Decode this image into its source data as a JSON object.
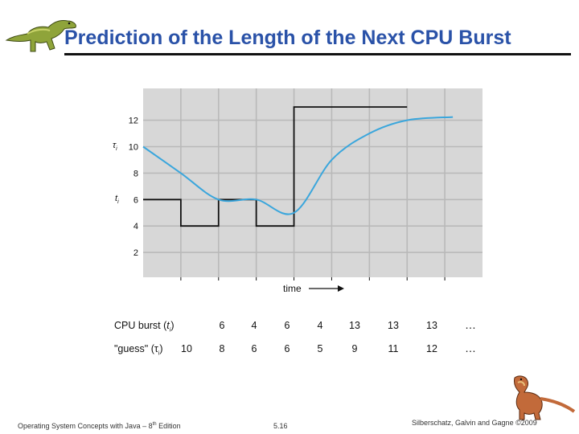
{
  "slide": {
    "title": "Prediction of the Length of the Next CPU Burst",
    "footer_left": "Operating System Concepts  with Java – 8",
    "footer_left_sup": "th",
    "footer_left_end": " Edition",
    "footer_center": "5.16",
    "footer_right": "Silberschatz, Galvin and Gagne ©2009"
  },
  "chart_data": {
    "type": "line",
    "ylim": [
      0,
      14
    ],
    "y_ticks": [
      2,
      4,
      6,
      8,
      10,
      12
    ],
    "x_grid_count": 9,
    "xlabel": "time",
    "y_label_tau": "τ",
    "y_label_tau_sub": "i",
    "y_label_t": "t",
    "y_label_t_sub": "i",
    "series": [
      {
        "name": "CPU burst (ti)",
        "values": [
          6,
          4,
          6,
          4,
          13,
          13,
          13
        ]
      },
      {
        "name": "guess (τi)",
        "values": [
          10,
          8,
          6,
          6,
          5,
          9,
          11,
          12
        ]
      }
    ],
    "colors": {
      "burst": "#111111",
      "guess": "#3aa6dc",
      "grid": "#b9b9b9",
      "plot_bg": "#d7d7d7"
    }
  },
  "table": {
    "burst_label": "CPU burst (",
    "burst_label_var": "t",
    "burst_label_sub": "i",
    "burst_label_end": ")",
    "burst_values": [
      "6",
      "4",
      "6",
      "4",
      "13",
      "13",
      "13"
    ],
    "guess_label": "\"guess\" (",
    "guess_label_var": "τ",
    "guess_label_sub": "i",
    "guess_label_end": ")",
    "guess_values": [
      "10",
      "8",
      "6",
      "6",
      "5",
      "9",
      "11",
      "12"
    ],
    "ellipsis": "…"
  },
  "icons": {
    "logo": "dinosaur-icon",
    "footer": "dinosaur-icon"
  }
}
